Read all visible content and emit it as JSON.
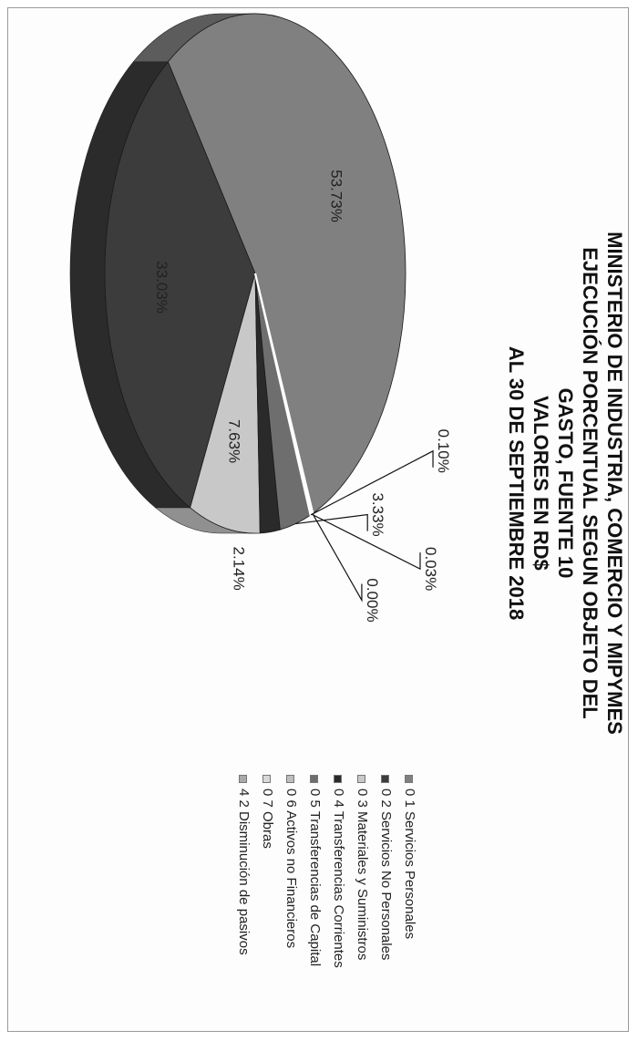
{
  "title": {
    "line1": "MINISTERIO DE INDUSTRIA,  COMERCIO Y MIPYMES",
    "line2": "EJECUCIÓN  PORCENTUAL  SEGUN OBJETO DEL",
    "line3": "GASTO,   FUENTE  10",
    "line4": "VALORES EN RD$",
    "line5": "AL  30  DE SEPTIEMBRE  2018"
  },
  "chart_data": {
    "type": "pie",
    "title": "MINISTERIO DE INDUSTRIA, COMERCIO Y MIPYMES EJECUCIÓN PORCENTUAL SEGUN OBJETO DEL GASTO, FUENTE 10 VALORES EN RD$ AL 30 DE SEPTIEMBRE 2018",
    "categories": [
      "0 1  Servicios Personales",
      "0 2  Servicios No Personales",
      "0 3  Materiales y Suministros",
      "0 4  Transferencias Corrientes",
      "0 5  Transferencias de Capital",
      "0 6  Activos no Financieros",
      "0 7  Obras",
      "4 2  Disminución de pasivos"
    ],
    "values": [
      53.73,
      33.03,
      7.63,
      2.14,
      3.33,
      0.1,
      0.03,
      0.0
    ],
    "value_labels": [
      "53.73%",
      "33.03%",
      "7.63%",
      "2.14%",
      "3.33%",
      "0.10%",
      "0.03%",
      "0.00%"
    ],
    "colors": [
      "#808080",
      "#3c3c3c",
      "#c8c8c8",
      "#2a2a2a",
      "#6e6e6e",
      "#bdbdbd",
      "#d8d8d8",
      "#a9a9a9"
    ],
    "legend_position": "right",
    "three_d": true
  },
  "legend": {
    "items": [
      {
        "label": "0 1  Servicios Personales",
        "color": "#808080"
      },
      {
        "label": "0 2  Servicios No Personales",
        "color": "#3c3c3c"
      },
      {
        "label": "0 3  Materiales y Suministros",
        "color": "#c8c8c8"
      },
      {
        "label": "0 4  Transferencias Corrientes",
        "color": "#2a2a2a"
      },
      {
        "label": "0 5  Transferencias de Capital",
        "color": "#6e6e6e"
      },
      {
        "label": "0 6  Activos no Financieros",
        "color": "#bdbdbd"
      },
      {
        "label": "0 7  Obras",
        "color": "#d8d8d8"
      },
      {
        "label": "4 2  Disminución de pasivos",
        "color": "#a9a9a9"
      }
    ]
  }
}
